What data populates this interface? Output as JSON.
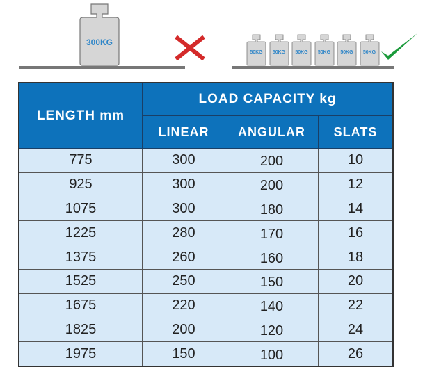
{
  "illustration": {
    "wrong": {
      "weight_label": "300KG",
      "icon": "red-x-icon",
      "color": "#d42a2a"
    },
    "right": {
      "weight_labels": [
        "50KG",
        "50KG",
        "50KG",
        "50KG",
        "50KG",
        "50KG"
      ],
      "icon": "green-check-icon",
      "color": "#1a9a3a"
    }
  },
  "table": {
    "header": {
      "length": "LENGTH mm",
      "load_capacity": "LOAD CAPACITY kg",
      "columns": [
        "LINEAR",
        "ANGULAR",
        "SLATS"
      ]
    },
    "rows": [
      [
        "775",
        "300",
        "200",
        "10"
      ],
      [
        "925",
        "300",
        "200",
        "12"
      ],
      [
        "1075",
        "300",
        "180",
        "14"
      ],
      [
        "1225",
        "280",
        "170",
        "16"
      ],
      [
        "1375",
        "260",
        "160",
        "18"
      ],
      [
        "1525",
        "250",
        "150",
        "20"
      ],
      [
        "1675",
        "220",
        "140",
        "22"
      ],
      [
        "1825",
        "200",
        "120",
        "24"
      ],
      [
        "1975",
        "150",
        "100",
        "26"
      ]
    ],
    "header_color": "#0d72bb",
    "cell_color": "#d7e9f8"
  }
}
